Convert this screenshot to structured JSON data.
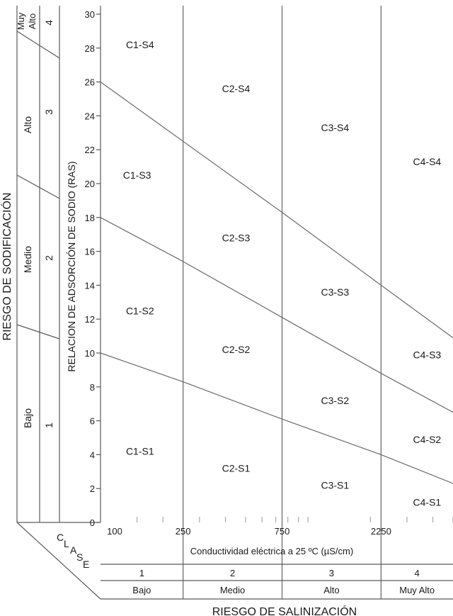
{
  "chart_data": {
    "type": "line",
    "title": "",
    "ylabel": "RELACION DE ADSORCIÓN DE SODIO (RAS)",
    "xlabel": "Conductividad eléctrica a 25 ºC (µS/cm)",
    "x_scale": "log",
    "xlim": [
      100,
      5000
    ],
    "ylim": [
      0,
      30
    ],
    "y_ticks": [
      "0",
      "2",
      "4",
      "6",
      "8",
      "10",
      "12",
      "14",
      "16",
      "18",
      "20",
      "22",
      "24",
      "26",
      "28",
      "30"
    ],
    "x_tick_labels": [
      {
        "x": 100,
        "label": "100"
      },
      {
        "x": 250,
        "label": "250"
      },
      {
        "x": 750,
        "label": "750"
      },
      {
        "x": 2250,
        "label": "2250"
      }
    ],
    "x_class_boundaries": [
      250,
      750,
      2250
    ],
    "x_minor_ticks": [
      150,
      200,
      300,
      400,
      500,
      600,
      700,
      800,
      900,
      1000,
      2000,
      3000,
      4000,
      5000
    ],
    "grid": false,
    "series": [
      {
        "values": [
          {
            "x": 100,
            "y": 10.0
          },
          {
            "x": 250,
            "y": 8.3
          },
          {
            "x": 750,
            "y": 6.1
          },
          {
            "x": 2250,
            "y": 4.0
          },
          {
            "x": 5000,
            "y": 2.3
          }
        ]
      },
      {
        "values": [
          {
            "x": 100,
            "y": 18.0
          },
          {
            "x": 250,
            "y": 15.4
          },
          {
            "x": 750,
            "y": 12.1
          },
          {
            "x": 2250,
            "y": 8.8
          },
          {
            "x": 5000,
            "y": 6.5
          }
        ]
      },
      {
        "values": [
          {
            "x": 100,
            "y": 26.0
          },
          {
            "x": 250,
            "y": 22.5
          },
          {
            "x": 750,
            "y": 18.3
          },
          {
            "x": 2250,
            "y": 14.0
          },
          {
            "x": 5000,
            "y": 10.9
          }
        ]
      }
    ],
    "zone_labels": [
      {
        "label": "C1-S4",
        "x": 155,
        "y": 28.2
      },
      {
        "label": "C1-S3",
        "x": 150,
        "y": 20.5
      },
      {
        "label": "C1-S2",
        "x": 155,
        "y": 12.5
      },
      {
        "label": "C1-S1",
        "x": 155,
        "y": 4.2
      },
      {
        "label": "C2-S4",
        "x": 450,
        "y": 25.6
      },
      {
        "label": "C2-S3",
        "x": 450,
        "y": 16.8
      },
      {
        "label": "C2-S2",
        "x": 450,
        "y": 10.2
      },
      {
        "label": "C2-S1",
        "x": 450,
        "y": 3.2
      },
      {
        "label": "C3-S4",
        "x": 1350,
        "y": 23.3
      },
      {
        "label": "C3-S3",
        "x": 1350,
        "y": 13.6
      },
      {
        "label": "C3-S2",
        "x": 1350,
        "y": 7.2
      },
      {
        "label": "C3-S1",
        "x": 1350,
        "y": 2.2
      },
      {
        "label": "C4-S4",
        "x": 3750,
        "y": 21.3
      },
      {
        "label": "C4-S3",
        "x": 3750,
        "y": 9.9
      },
      {
        "label": "C4-S2",
        "x": 3750,
        "y": 4.9
      },
      {
        "label": "C4-S1",
        "x": 3750,
        "y": 1.2
      }
    ]
  },
  "sodification": {
    "title": "RIESGO DE SODIFICACIÓN",
    "levels": [
      "Bajo",
      "Medio",
      "Alto",
      "Muy Alto"
    ],
    "very_high_lines": [
      "Muy",
      "Alto"
    ],
    "classes": [
      "1",
      "2",
      "3",
      "4"
    ]
  },
  "salinization": {
    "title": "RIESGO DE SALINIZACIÓN",
    "classes": [
      "1",
      "2",
      "3",
      "4"
    ],
    "levels": [
      "Bajo",
      "Medio",
      "Alto",
      "Muy Alto"
    ]
  },
  "clase_label": [
    "C",
    "L",
    "A",
    "S",
    "E"
  ]
}
